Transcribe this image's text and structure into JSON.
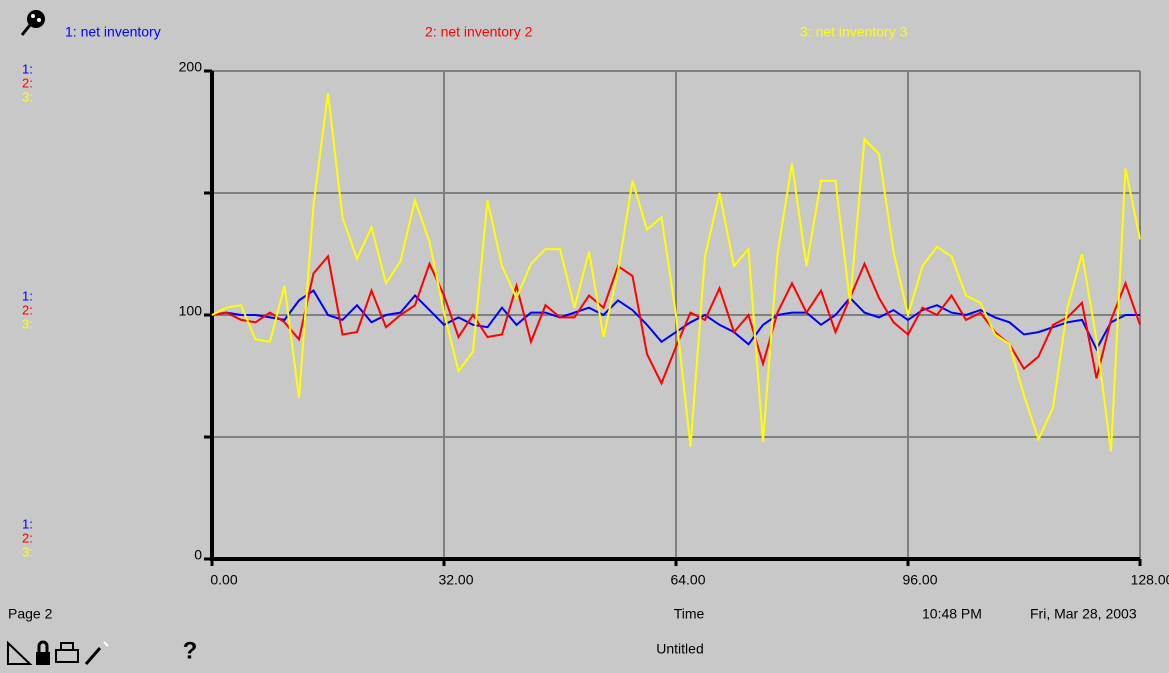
{
  "legend_scale_labels": [
    "1:",
    "2:",
    "3:"
  ],
  "footer": {
    "page": "Page 2",
    "time": "10:48 PM",
    "date": "Fri, Mar 28, 2003",
    "document": "Untitled",
    "help": "?"
  },
  "chart_data": {
    "type": "line",
    "x_label": "Time",
    "x": [
      0,
      2,
      4,
      6,
      8,
      10,
      12,
      14,
      16,
      18,
      20,
      22,
      24,
      26,
      28,
      30,
      32,
      34,
      36,
      38,
      40,
      42,
      44,
      46,
      48,
      50,
      52,
      54,
      56,
      58,
      60,
      62,
      64,
      66,
      68,
      70,
      72,
      74,
      76,
      78,
      80,
      82,
      84,
      86,
      88,
      90,
      92,
      94,
      96,
      98,
      100,
      102,
      104,
      106,
      108,
      110,
      112,
      114,
      116,
      118,
      120,
      122,
      124,
      126,
      128
    ],
    "series": [
      {
        "name": "1: net inventory",
        "color": "#0000ff",
        "values": [
          100,
          101,
          100,
          100,
          99,
          98,
          106,
          110,
          100,
          98,
          104,
          97,
          100,
          101,
          108,
          102,
          96,
          99,
          96,
          95,
          103,
          96,
          101,
          101,
          99,
          101,
          103,
          100,
          106,
          102,
          96,
          89,
          93,
          97,
          100,
          96,
          93,
          88,
          96,
          100,
          101,
          101,
          96,
          100,
          107,
          101,
          99,
          102,
          98,
          102,
          104,
          101,
          100,
          102,
          99,
          97,
          92,
          93,
          95,
          97,
          98,
          86,
          97,
          100,
          100
        ]
      },
      {
        "name": "2: net inventory 2",
        "color": "#ff0000",
        "values": [
          100,
          101,
          98,
          97,
          101,
          97,
          90,
          117,
          124,
          92,
          93,
          110,
          95,
          100,
          104,
          121,
          108,
          91,
          100,
          91,
          92,
          112,
          89,
          104,
          99,
          99,
          108,
          103,
          120,
          116,
          84,
          72,
          87,
          101,
          98,
          111,
          93,
          100,
          80,
          101,
          113,
          101,
          110,
          93,
          107,
          121,
          107,
          97,
          92,
          103,
          100,
          108,
          98,
          101,
          93,
          88,
          78,
          83,
          96,
          99,
          105,
          74,
          98,
          113,
          96
        ]
      },
      {
        "name": "3: net inventory 3",
        "color": "#ffff00",
        "values": [
          100,
          103,
          104,
          90,
          89,
          112,
          66,
          145,
          191,
          140,
          123,
          136,
          113,
          122,
          147,
          130,
          101,
          77,
          85,
          147,
          120,
          107,
          121,
          127,
          127,
          103,
          126,
          91,
          118,
          155,
          135,
          140,
          100,
          46,
          124,
          150,
          120,
          127,
          48,
          125,
          162,
          120,
          155,
          155,
          105,
          172,
          166,
          126,
          100,
          120,
          128,
          124,
          108,
          105,
          92,
          88,
          67,
          49,
          62,
          103,
          125,
          90,
          44,
          160,
          131
        ]
      }
    ],
    "xlim": [
      0,
      128
    ],
    "xticks": [
      {
        "value": 0,
        "label": "0.00"
      },
      {
        "value": 32,
        "label": "32.00"
      },
      {
        "value": 64,
        "label": "64.00"
      },
      {
        "value": 96,
        "label": "96.00"
      },
      {
        "value": 128,
        "label": "128.00"
      }
    ],
    "ylim": [
      0,
      200
    ],
    "yticks": [
      0,
      100,
      200
    ],
    "minor_yticks": [
      50,
      150
    ],
    "grid": true
  }
}
